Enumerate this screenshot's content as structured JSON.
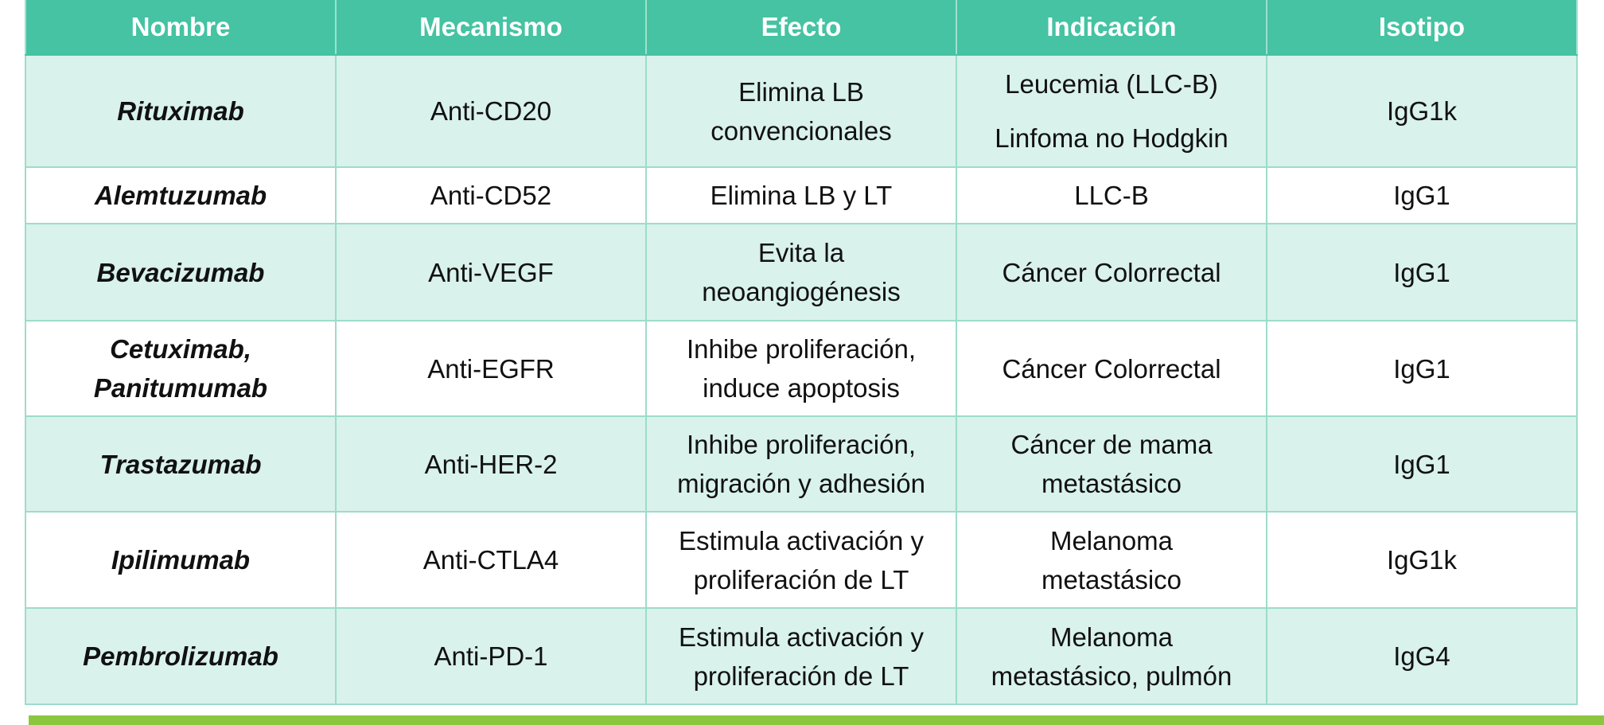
{
  "table": {
    "headers": [
      "Nombre",
      "Mecanismo",
      "Efecto",
      "Indicación",
      "Isotipo"
    ],
    "rows": [
      {
        "nombre": [
          "Rituximab"
        ],
        "mecanismo": "Anti-CD20",
        "efecto": [
          "Elimina LB",
          "convencionales"
        ],
        "indicacion": [
          "Leucemia (LLC-B)",
          "Linfoma no Hodgkin"
        ],
        "isotipo": "IgG1k"
      },
      {
        "nombre": [
          "Alemtuzumab"
        ],
        "mecanismo": "Anti-CD52",
        "efecto": [
          "Elimina LB y LT"
        ],
        "indicacion": [
          "LLC-B"
        ],
        "isotipo": "IgG1"
      },
      {
        "nombre": [
          "Bevacizumab"
        ],
        "mecanismo": "Anti-VEGF",
        "efecto": [
          "Evita la",
          "neoangiogénesis"
        ],
        "indicacion": [
          "Cáncer Colorrectal"
        ],
        "isotipo": "IgG1"
      },
      {
        "nombre": [
          "Cetuximab,",
          "Panitumumab"
        ],
        "mecanismo": "Anti-EGFR",
        "efecto": [
          "Inhibe proliferación,",
          "induce apoptosis"
        ],
        "indicacion": [
          "Cáncer Colorrectal"
        ],
        "isotipo": "IgG1"
      },
      {
        "nombre": [
          "Trastazumab"
        ],
        "mecanismo": "Anti-HER-2",
        "efecto": [
          "Inhibe proliferación,",
          "migración y adhesión"
        ],
        "indicacion": [
          "Cáncer de mama",
          "metastásico"
        ],
        "isotipo": "IgG1"
      },
      {
        "nombre": [
          "Ipilimumab"
        ],
        "mecanismo": "Anti-CTLA4",
        "efecto": [
          "Estimula activación y",
          "proliferación de LT"
        ],
        "indicacion": [
          "Melanoma",
          "metastásico"
        ],
        "isotipo": "IgG1k"
      },
      {
        "nombre": [
          "Pembrolizumab"
        ],
        "mecanismo": "Anti-PD-1",
        "efecto": [
          "Estimula activación y",
          "proliferación de LT"
        ],
        "indicacion": [
          "Melanoma",
          "metastásico, pulmón"
        ],
        "isotipo": "IgG4"
      }
    ]
  },
  "colors": {
    "header_bg": "#45c3a3",
    "header_text": "#ffffff",
    "row_alt_bg": "#d9f2eb",
    "border": "#9ddcca",
    "accent_bar": "#8cc63f"
  }
}
